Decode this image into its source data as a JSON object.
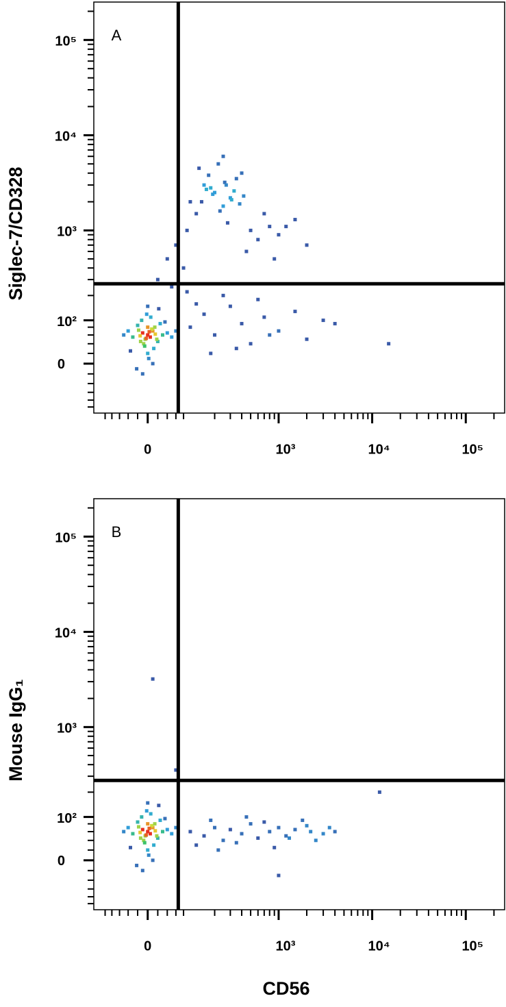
{
  "chart_data": [
    {
      "type": "scatter",
      "label": "A",
      "y_label": "Siglec-7/CD328",
      "xscale": "biexponential",
      "yscale": "biexponential",
      "xlim": [
        -140,
        260000
      ],
      "ylim": [
        -120,
        250000
      ],
      "xticks": [
        0,
        {
          "value": 1000,
          "label": "10³"
        },
        {
          "value": 10000,
          "label": "10⁴"
        },
        {
          "value": 100000,
          "label": "10⁵"
        }
      ],
      "yticks": [
        0,
        {
          "value": 100,
          "label": "10²"
        },
        {
          "value": 1000,
          "label": "10³"
        },
        {
          "value": 10000,
          "label": "10⁴"
        },
        {
          "value": 100000,
          "label": "10⁵"
        }
      ],
      "minor_ticks": [
        -100,
        -80,
        -60,
        -40,
        -20,
        20,
        40,
        60,
        80,
        200,
        300,
        400,
        500,
        600,
        700,
        800,
        900,
        2000,
        3000,
        4000,
        5000,
        6000,
        7000,
        8000,
        9000,
        20000,
        30000,
        40000,
        50000,
        60000,
        70000,
        80000,
        90000,
        200000
      ],
      "gates": {
        "x": 66,
        "y": 270
      },
      "colormap": [
        "#3a5aa8",
        "#2fa8e0",
        "#3cc26a",
        "#e8e030",
        "#e83020"
      ],
      "x": [
        0,
        5,
        -10,
        10,
        -5,
        15,
        -15,
        20,
        0,
        8,
        -8,
        3,
        -3,
        25,
        -20,
        12,
        -12,
        30,
        -30,
        0,
        6,
        -6,
        18,
        -18,
        40,
        -40,
        2,
        -2,
        10,
        -10,
        50,
        -50,
        22,
        -22,
        35,
        -35,
        0,
        14,
        -14,
        60,
        100,
        150,
        200,
        250,
        300,
        350,
        400,
        120,
        180,
        220,
        280,
        330,
        500,
        600,
        800,
        60,
        40,
        20,
        90,
        130,
        170,
        260,
        310,
        450,
        700,
        1000,
        1500,
        2000,
        250,
        190,
        230,
        270,
        140,
        160,
        380,
        420,
        900,
        1200,
        80,
        50,
        100,
        150,
        200,
        300,
        400,
        500,
        700,
        1000,
        1500,
        2000,
        3000,
        250,
        350,
        600,
        120,
        180,
        800,
        4000,
        15000,
        90
      ],
      "y": [
        60,
        55,
        65,
        70,
        50,
        62,
        58,
        45,
        80,
        75,
        40,
        68,
        52,
        90,
        85,
        30,
        100,
        60,
        55,
        20,
        110,
        35,
        50,
        72,
        65,
        70,
        10,
        120,
        0,
        -20,
        55,
        60,
        140,
        -10,
        95,
        25,
        150,
        80,
        45,
        70,
        2000,
        3000,
        2500,
        1800,
        2200,
        3500,
        4000,
        1500,
        2800,
        5000,
        1200,
        2600,
        1000,
        800,
        1100,
        700,
        500,
        300,
        1000,
        4500,
        3800,
        3200,
        2100,
        600,
        1500,
        900,
        1300,
        700,
        6000,
        2400,
        1600,
        3000,
        2000,
        2700,
        1900,
        2300,
        500,
        1100,
        400,
        250,
        80,
        120,
        60,
        150,
        90,
        40,
        110,
        70,
        130,
        50,
        100,
        200,
        30,
        180,
        160,
        20,
        60,
        90,
        40,
        220
      ]
    },
    {
      "type": "scatter",
      "label": "B",
      "y_label": "Mouse IgG₁",
      "x_label": "CD56",
      "xscale": "biexponential",
      "yscale": "biexponential",
      "xlim": [
        -140,
        260000
      ],
      "ylim": [
        -120,
        250000
      ],
      "xticks": [
        0,
        {
          "value": 1000,
          "label": "10³"
        },
        {
          "value": 10000,
          "label": "10⁴"
        },
        {
          "value": 100000,
          "label": "10⁵"
        }
      ],
      "yticks": [
        0,
        {
          "value": 100,
          "label": "10²"
        },
        {
          "value": 1000,
          "label": "10³"
        },
        {
          "value": 10000,
          "label": "10⁴"
        },
        {
          "value": 100000,
          "label": "10⁵"
        }
      ],
      "minor_ticks": [
        -100,
        -80,
        -60,
        -40,
        -20,
        20,
        40,
        60,
        80,
        200,
        300,
        400,
        500,
        600,
        700,
        800,
        900,
        2000,
        3000,
        4000,
        5000,
        6000,
        7000,
        8000,
        9000,
        20000,
        30000,
        40000,
        50000,
        60000,
        70000,
        80000,
        90000,
        200000
      ],
      "gates": {
        "x": 66,
        "y": 270
      },
      "colormap": [
        "#3a5aa8",
        "#2fa8e0",
        "#3cc26a",
        "#e8e030",
        "#e83020"
      ],
      "x": [
        0,
        5,
        -10,
        10,
        -5,
        15,
        -15,
        20,
        0,
        8,
        -8,
        3,
        -3,
        25,
        -20,
        12,
        -12,
        30,
        -30,
        0,
        6,
        -6,
        18,
        -18,
        40,
        -40,
        2,
        -2,
        10,
        -10,
        50,
        -50,
        22,
        -22,
        35,
        -35,
        0,
        14,
        -14,
        60,
        100,
        150,
        200,
        250,
        300,
        400,
        500,
        600,
        800,
        1000,
        1200,
        1500,
        2000,
        2500,
        3000,
        4000,
        120,
        180,
        220,
        350,
        450,
        700,
        900,
        1300,
        1800,
        2200,
        3500,
        12000,
        1000,
        60,
        10
      ],
      "y": [
        60,
        55,
        65,
        70,
        50,
        62,
        58,
        45,
        80,
        75,
        40,
        68,
        52,
        90,
        85,
        30,
        100,
        60,
        55,
        20,
        110,
        35,
        50,
        72,
        65,
        70,
        10,
        120,
        0,
        -20,
        55,
        60,
        140,
        -10,
        95,
        25,
        150,
        80,
        45,
        70,
        60,
        50,
        70,
        40,
        65,
        55,
        80,
        45,
        60,
        70,
        50,
        65,
        75,
        40,
        55,
        60,
        30,
        90,
        20,
        35,
        100,
        85,
        25,
        45,
        90,
        60,
        70,
        200,
        -30,
        350,
        3200
      ]
    }
  ]
}
